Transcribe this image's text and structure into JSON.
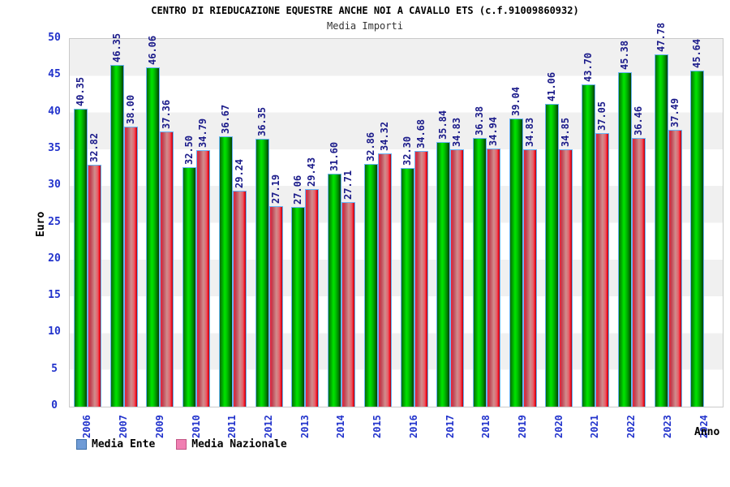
{
  "chart_data": {
    "type": "bar",
    "title": "CENTRO DI RIEDUCAZIONE EQUESTRE ANCHE NOI A CAVALLO ETS (c.f.91009860932)",
    "subtitle": "Media Importi",
    "ylabel": "Euro",
    "xlabel": "Anno",
    "ylim": [
      0,
      50
    ],
    "yticks": [
      0,
      5,
      10,
      15,
      20,
      25,
      30,
      35,
      40,
      45,
      50
    ],
    "grid": "alternating horizontal gray/white bands every 5 units",
    "legend_position": "bottom-left",
    "value_label_format": "0.00",
    "value_label_color": "#1b1b8a",
    "axis_tick_color": "#2233cc",
    "band_color": "#f0f0f0",
    "bar_outline_color": "#68b4f4",
    "categories": [
      "2006",
      "2007",
      "2009",
      "2010",
      "2011",
      "2012",
      "2013",
      "2014",
      "2015",
      "2016",
      "2017",
      "2018",
      "2019",
      "2020",
      "2021",
      "2022",
      "2023",
      "2024"
    ],
    "series": [
      {
        "name": "Media Ente",
        "bar_color": "#00dd00",
        "legend_color": "#6f9bd6",
        "legend_border": "#3c6ea8",
        "values": [
          40.35,
          46.35,
          46.06,
          32.5,
          36.67,
          36.35,
          27.06,
          31.6,
          32.86,
          32.3,
          35.84,
          36.38,
          39.04,
          41.06,
          43.7,
          45.38,
          47.78,
          45.64
        ]
      },
      {
        "name": "Media Nazionale",
        "bar_color": "#e05060",
        "legend_color": "#f07fb2",
        "legend_border": "#c25585",
        "values": [
          32.82,
          38.0,
          37.36,
          34.79,
          29.24,
          27.19,
          29.43,
          27.71,
          34.32,
          34.68,
          34.83,
          34.94,
          34.83,
          34.85,
          37.05,
          36.46,
          37.49,
          null
        ]
      }
    ]
  }
}
